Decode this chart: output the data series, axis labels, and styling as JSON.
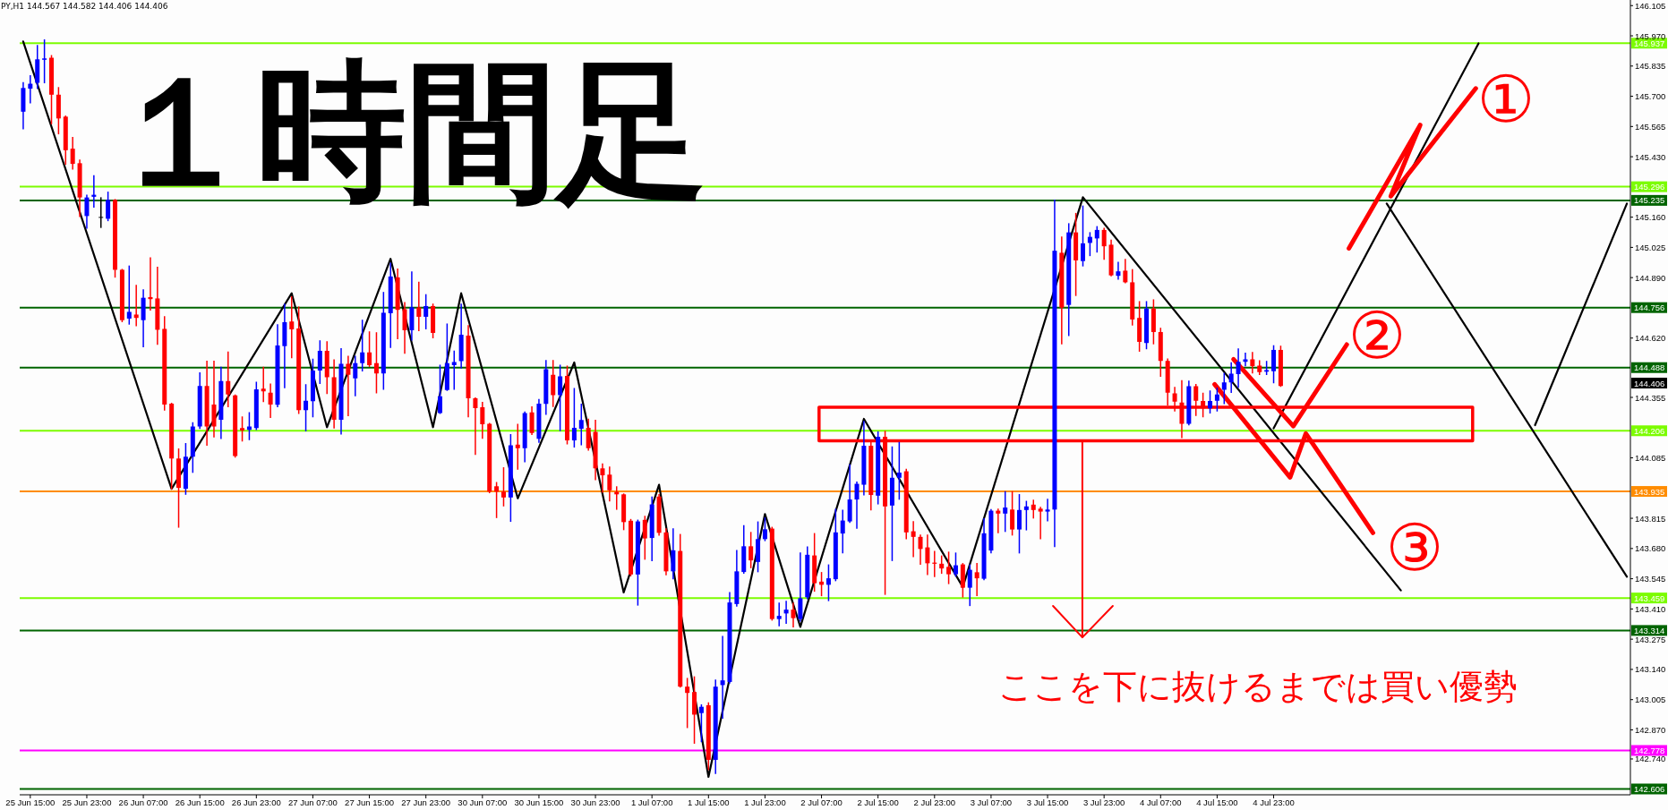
{
  "chart_data": {
    "type": "candlestick",
    "title": "１時間足",
    "subtitle": "PY,H1 144.567 144.582 144.406 144.406",
    "categories": [
      null,
      "25 Jun 15:00",
      null,
      null,
      null,
      null,
      null,
      null,
      null,
      "25 Jun 23:00",
      null,
      null,
      null,
      null,
      null,
      null,
      null,
      "26 Jun 07:00",
      null,
      null,
      null,
      null,
      null,
      null,
      null,
      "26 Jun 15:00",
      null,
      null,
      null,
      null,
      null,
      null,
      null,
      "26 Jun 23:00",
      null,
      null,
      null,
      null,
      null,
      null,
      null,
      "27 Jun 07:00",
      null,
      null,
      null,
      null,
      null,
      null,
      null,
      "27 Jun 15:00",
      null,
      null,
      null,
      null,
      null,
      null,
      null,
      "27 Jun 23:00",
      null,
      null,
      null,
      null,
      null,
      null,
      null,
      "30 Jun 07:00",
      null,
      null,
      null,
      null,
      null,
      null,
      null,
      "30 Jun 15:00",
      null,
      null,
      null,
      null,
      null,
      null,
      null,
      "30 Jun 23:00",
      null,
      null,
      null,
      null,
      null,
      null,
      null,
      "1 Jul 07:00",
      null,
      null,
      null,
      null,
      null,
      null,
      null,
      "1 Jul 15:00",
      null,
      null,
      null,
      null,
      null,
      null,
      null,
      "1 Jul 23:00",
      null,
      null,
      null,
      null,
      null,
      null,
      null,
      "2 Jul 07:00",
      null,
      null,
      null,
      null,
      null,
      null,
      null,
      "2 Jul 15:00",
      null,
      null,
      null,
      null,
      null,
      null,
      null,
      "2 Jul 23:00",
      null,
      null,
      null,
      null,
      null,
      null,
      null,
      "3 Jul 07:00",
      null,
      null,
      null,
      null,
      null,
      null,
      null,
      "3 Jul 15:00",
      null,
      null,
      null,
      null,
      null,
      null,
      null,
      "3 Jul 23:00",
      null,
      null,
      null,
      null,
      null,
      null,
      null,
      "4 Jul 07:00",
      null,
      null,
      null,
      null,
      null,
      null,
      null,
      "4 Jul 15:00",
      null,
      null,
      null,
      null,
      null,
      null,
      null,
      "4 Jul 23:00",
      null,
      null,
      null,
      null,
      null,
      null,
      null,
      null,
      null,
      null,
      null,
      null,
      null,
      null,
      null,
      null,
      null,
      null,
      null,
      null,
      null,
      null,
      null,
      null,
      null,
      null,
      null,
      null,
      null,
      null,
      null,
      null,
      null,
      null,
      null,
      null,
      null,
      null,
      null,
      null,
      null,
      null,
      null,
      null,
      null,
      null,
      null,
      null,
      null,
      null
    ],
    "ohlc": [
      [
        145.631,
        145.759,
        145.556,
        145.737
      ],
      [
        145.734,
        145.79,
        145.672,
        145.756
      ],
      [
        145.76,
        145.925,
        145.737,
        145.865
      ],
      [
        145.863,
        145.95,
        145.762,
        145.869
      ],
      [
        145.872,
        145.88,
        145.579,
        145.707
      ],
      [
        145.707,
        145.737,
        145.534,
        145.601
      ],
      [
        145.609,
        145.61,
        145.398,
        145.459
      ],
      [
        145.466,
        145.514,
        145.376,
        145.398
      ],
      [
        145.401,
        145.413,
        145.165,
        145.248
      ],
      [
        145.165,
        145.256,
        145.113,
        145.248
      ],
      [
        145.251,
        145.343,
        145.207,
        145.26
      ],
      [
        145.161,
        145.245,
        145.116,
        145.161
      ],
      [
        145.153,
        145.27,
        145.146,
        145.237
      ],
      [
        145.237,
        145.237,
        144.894,
        144.925
      ],
      [
        144.925,
        144.925,
        144.695,
        144.7
      ],
      [
        144.707,
        144.94,
        144.684,
        144.737
      ],
      [
        144.725,
        144.854,
        144.677,
        144.71
      ],
      [
        144.7,
        144.834,
        144.583,
        144.8
      ],
      [
        144.803,
        144.977,
        144.747,
        144.794
      ],
      [
        144.797,
        144.935,
        144.594,
        144.657
      ],
      [
        144.661,
        144.714,
        144.3,
        144.323
      ],
      [
        144.327,
        144.327,
        143.947,
        144.082
      ],
      [
        144.082,
        144.123,
        143.777,
        143.951
      ],
      [
        143.947,
        144.147,
        143.924,
        144.09
      ],
      [
        144.09,
        144.24,
        144.022,
        144.225
      ],
      [
        144.225,
        144.463,
        144.218,
        144.406
      ],
      [
        144.406,
        144.515,
        144.143,
        144.225
      ],
      [
        144.323,
        144.515,
        144.18,
        144.225
      ],
      [
        144.255,
        144.488,
        144.173,
        144.428
      ],
      [
        144.428,
        144.556,
        144.315,
        144.368
      ],
      [
        144.364,
        144.364,
        144.09,
        144.093
      ],
      [
        144.218,
        144.266,
        144.162,
        144.207
      ],
      [
        144.21,
        144.285,
        144.168,
        144.225
      ],
      [
        144.218,
        144.421,
        144.213,
        144.391
      ],
      [
        144.394,
        144.488,
        144.338,
        144.382
      ],
      [
        144.376,
        144.413,
        144.267,
        144.323
      ],
      [
        144.322,
        144.678,
        144.315,
        144.587
      ],
      [
        144.584,
        144.77,
        144.4,
        144.691
      ],
      [
        144.694,
        144.803,
        144.534,
        144.659
      ],
      [
        144.663,
        144.757,
        144.285,
        144.298
      ],
      [
        144.298,
        144.41,
        144.207,
        144.34
      ],
      [
        144.338,
        144.524,
        144.27,
        144.475
      ],
      [
        144.475,
        144.606,
        144.419,
        144.563
      ],
      [
        144.563,
        144.602,
        144.374,
        144.445
      ],
      [
        144.445,
        144.521,
        144.22,
        144.255
      ],
      [
        144.255,
        144.571,
        144.193,
        144.505
      ],
      [
        144.505,
        144.537,
        144.275,
        144.456
      ],
      [
        144.44,
        144.537,
        144.364,
        144.508
      ],
      [
        144.508,
        144.698,
        144.475,
        144.556
      ],
      [
        144.556,
        144.646,
        144.495,
        144.499
      ],
      [
        144.508,
        144.642,
        144.377,
        144.462
      ],
      [
        144.462,
        144.822,
        144.393,
        144.733
      ],
      [
        144.731,
        144.953,
        144.58,
        144.895
      ],
      [
        144.891,
        144.927,
        144.619,
        144.746
      ],
      [
        144.749,
        144.777,
        144.554,
        144.655
      ],
      [
        144.655,
        144.914,
        144.613,
        144.757
      ],
      [
        144.757,
        144.868,
        144.655,
        144.715
      ],
      [
        144.715,
        144.812,
        144.663,
        144.763
      ],
      [
        144.763,
        144.77,
        144.623,
        144.643
      ],
      [
        144.285,
        144.497,
        144.285,
        144.36
      ],
      [
        144.388,
        144.681,
        144.388,
        144.508
      ],
      [
        144.499,
        144.56,
        144.393,
        144.513
      ],
      [
        144.517,
        144.77,
        144.488,
        144.635
      ],
      [
        144.631,
        144.674,
        144.27,
        144.351
      ],
      [
        144.351,
        144.351,
        144.102,
        144.307
      ],
      [
        144.311,
        144.331,
        144.174,
        144.235
      ],
      [
        144.237,
        144.237,
        143.931,
        143.934
      ],
      [
        143.958,
        143.973,
        143.82,
        143.934
      ],
      [
        143.934,
        144.039,
        143.872,
        143.908
      ],
      [
        143.908,
        144.187,
        143.803,
        144.141
      ],
      [
        144.144,
        144.233,
        144.036,
        144.128
      ],
      [
        144.128,
        144.288,
        144.069,
        144.285
      ],
      [
        144.288,
        144.311,
        144.191,
        144.196
      ],
      [
        144.17,
        144.344,
        144.156,
        144.327
      ],
      [
        144.326,
        144.518,
        144.281,
        144.481
      ],
      [
        144.456,
        144.518,
        144.316,
        144.365
      ],
      [
        144.365,
        144.497,
        144.208,
        144.449
      ],
      [
        144.451,
        144.493,
        144.149,
        144.163
      ],
      [
        144.163,
        144.393,
        144.135,
        144.219
      ],
      [
        144.215,
        144.323,
        144.145,
        144.254
      ],
      [
        144.219,
        144.256,
        144.121,
        144.128
      ],
      [
        144.201,
        144.251,
        143.989,
        144.038
      ],
      [
        144.038,
        144.056,
        143.933,
        144.007
      ],
      [
        144.01,
        144.042,
        143.894,
        143.94
      ],
      [
        143.933,
        143.954,
        143.857,
        143.922
      ],
      [
        143.922,
        143.922,
        143.766,
        143.798
      ],
      [
        143.804,
        143.808,
        143.56,
        143.564
      ],
      [
        143.564,
        143.805,
        143.429,
        143.801
      ],
      [
        143.808,
        143.822,
        143.634,
        143.725
      ],
      [
        143.727,
        143.908,
        143.627,
        143.877
      ],
      [
        143.912,
        143.919,
        143.741,
        143.75
      ],
      [
        143.752,
        143.766,
        143.564,
        143.578
      ],
      [
        143.578,
        143.766,
        143.546,
        143.672
      ],
      [
        143.669,
        143.741,
        143.063,
        143.063
      ],
      [
        143.063,
        143.098,
        142.882,
        143.035
      ],
      [
        143.039,
        143.105,
        142.812,
        142.938
      ],
      [
        142.945,
        142.98,
        142.819,
        142.973
      ],
      [
        142.98,
        142.989,
        142.694,
        142.736
      ],
      [
        142.736,
        143.091,
        142.677,
        143.063
      ],
      [
        143.07,
        143.286,
        142.924,
        143.091
      ],
      [
        143.084,
        143.481,
        143.081,
        143.439
      ],
      [
        143.432,
        143.669,
        143.425,
        143.578
      ],
      [
        143.575,
        143.78,
        143.571,
        143.69
      ],
      [
        143.69,
        143.75,
        143.596,
        143.627
      ],
      [
        143.62,
        143.797,
        143.578,
        143.722
      ],
      [
        143.722,
        143.815,
        143.717,
        143.766
      ],
      [
        143.769,
        143.773,
        143.362,
        143.365
      ],
      [
        143.365,
        143.435,
        143.337,
        143.379
      ],
      [
        143.39,
        143.443,
        143.348,
        143.407
      ],
      [
        143.407,
        143.435,
        143.332,
        143.369
      ],
      [
        143.365,
        143.658,
        143.358,
        143.458
      ],
      [
        143.462,
        143.685,
        143.458,
        143.652
      ],
      [
        143.649,
        143.745,
        143.491,
        143.525
      ],
      [
        143.532,
        143.571,
        143.471,
        143.518
      ],
      [
        143.518,
        143.605,
        143.449,
        143.547
      ],
      [
        143.543,
        143.854,
        143.538,
        143.752
      ],
      [
        143.747,
        143.849,
        143.662,
        143.805
      ],
      [
        143.801,
        144.052,
        143.798,
        143.899
      ],
      [
        143.899,
        143.975,
        143.772,
        143.969
      ],
      [
        143.965,
        144.246,
        143.921,
        144.139
      ],
      [
        144.139,
        144.152,
        143.854,
        143.919
      ],
      [
        143.916,
        144.199,
        143.881,
        144.179
      ],
      [
        144.179,
        144.202,
        143.477,
        143.868
      ],
      [
        143.872,
        144.132,
        143.628,
        143.996
      ],
      [
        143.996,
        144.152,
        143.902,
        144.019
      ],
      [
        144.025,
        144.032,
        143.725,
        143.752
      ],
      [
        143.757,
        143.798,
        143.645,
        143.732
      ],
      [
        143.732,
        143.738,
        143.611,
        143.678
      ],
      [
        143.685,
        143.738,
        143.565,
        143.614
      ],
      [
        143.617,
        143.665,
        143.556,
        143.612
      ],
      [
        143.612,
        143.645,
        143.571,
        143.591
      ],
      [
        143.598,
        143.662,
        143.525,
        143.565
      ],
      [
        143.565,
        143.658,
        143.558,
        143.605
      ],
      [
        143.609,
        143.611,
        143.465,
        143.505
      ],
      [
        143.505,
        143.605,
        143.427,
        143.585
      ],
      [
        143.574,
        143.611,
        143.471,
        143.547
      ],
      [
        143.545,
        143.811,
        143.542,
        143.748
      ],
      [
        143.671,
        143.852,
        143.662,
        143.849
      ],
      [
        143.849,
        143.854,
        143.752,
        143.836
      ],
      [
        143.836,
        143.932,
        143.758,
        143.863
      ],
      [
        143.854,
        143.932,
        143.742,
        143.765
      ],
      [
        143.765,
        143.919,
        143.662,
        143.852
      ],
      [
        143.852,
        143.889,
        143.765,
        143.868
      ],
      [
        143.876,
        143.894,
        143.818,
        143.852
      ],
      [
        143.858,
        143.862,
        143.725,
        143.845
      ],
      [
        143.845,
        143.898,
        143.805,
        143.854
      ],
      [
        143.854,
        145.235,
        143.69,
        145.01
      ],
      [
        145.001,
        145.07,
        144.596,
        144.756
      ],
      [
        144.768,
        145.129,
        144.633,
        145.092
      ],
      [
        145.092,
        145.175,
        144.812,
        144.967
      ],
      [
        144.964,
        145.208,
        144.944,
        145.043
      ],
      [
        145.045,
        145.089,
        144.99,
        145.072
      ],
      [
        145.065,
        145.116,
        145.006,
        145.103
      ],
      [
        145.103,
        145.109,
        144.974,
        145.03
      ],
      [
        145.037,
        145.056,
        144.9,
        144.9
      ],
      [
        144.898,
        144.957,
        144.885,
        144.918
      ],
      [
        144.921,
        144.97,
        144.869,
        144.869
      ],
      [
        144.869,
        144.924,
        144.68,
        144.703
      ],
      [
        144.71,
        144.781,
        144.563,
        144.603
      ],
      [
        144.598,
        144.781,
        144.574,
        144.752
      ],
      [
        144.752,
        144.789,
        144.596,
        144.647
      ],
      [
        144.647,
        144.662,
        144.451,
        144.518
      ],
      [
        144.518,
        144.525,
        144.323,
        144.376
      ],
      [
        144.373,
        144.398,
        144.296,
        144.336
      ],
      [
        144.332,
        144.428,
        144.177,
        144.237
      ],
      [
        144.237,
        144.426,
        144.234,
        144.405
      ],
      [
        144.405,
        144.411,
        144.276,
        144.34
      ],
      [
        144.339,
        144.372,
        144.27,
        144.306
      ],
      [
        144.306,
        144.382,
        144.287,
        144.339
      ],
      [
        144.34,
        144.395,
        144.296,
        144.368
      ],
      [
        144.389,
        144.461,
        144.329,
        144.422
      ],
      [
        144.422,
        144.508,
        144.379,
        144.461
      ],
      [
        144.459,
        144.57,
        144.402,
        144.514
      ],
      [
        144.514,
        144.551,
        144.498,
        144.525
      ],
      [
        144.525,
        144.554,
        144.466,
        144.495
      ],
      [
        144.497,
        144.517,
        144.459,
        144.468
      ],
      [
        144.47,
        144.514,
        144.459,
        144.477
      ],
      [
        144.472,
        144.584,
        144.422,
        144.567
      ],
      [
        144.567,
        144.582,
        144.406,
        144.406
      ],
      null,
      null,
      null,
      null,
      null,
      null,
      null,
      null,
      null,
      null,
      null,
      null,
      null,
      null,
      null,
      null,
      null,
      null,
      null,
      null,
      null,
      null,
      null,
      null,
      null,
      null,
      null,
      null,
      null,
      null,
      null,
      null,
      null,
      null,
      null,
      null,
      null,
      null,
      null,
      null,
      null,
      null,
      null,
      null,
      null,
      null,
      null,
      null,
      null
    ],
    "colors": [
      "#0000ff",
      "#0000ff",
      "#0000ff",
      "#0000ff",
      "#ff0000",
      "#ff0000",
      "#ff0000",
      "#ff0000",
      "#ff0000",
      "#0000ff",
      "#0000ff",
      "#000000",
      "#0000ff",
      "#ff0000",
      "#ff0000",
      "#0000ff",
      "#ff0000",
      "#0000ff",
      "#ff0000",
      "#ff0000",
      "#ff0000",
      "#ff0000",
      "#ff0000",
      "#0000ff",
      "#0000ff",
      "#0000ff",
      "#ff0000",
      "#ff0000",
      "#0000ff",
      "#ff0000",
      "#ff0000",
      "#ff0000",
      "#0000ff",
      "#0000ff",
      "#ff0000",
      "#ff0000",
      "#0000ff",
      "#0000ff",
      "#ff0000",
      "#ff0000",
      "#0000ff",
      "#0000ff",
      "#0000ff",
      "#ff0000",
      "#ff0000",
      "#0000ff",
      "#ff0000",
      "#0000ff",
      "#0000ff",
      "#ff0000",
      "#ff0000",
      "#0000ff",
      "#0000ff",
      "#ff0000",
      "#ff0000",
      "#0000ff",
      "#ff0000",
      "#0000ff",
      "#ff0000",
      "#0000ff",
      "#0000ff",
      "#0000ff",
      "#0000ff",
      "#ff0000",
      "#ff0000",
      "#ff0000",
      "#ff0000",
      "#ff0000",
      "#ff0000",
      "#0000ff",
      "#ff0000",
      "#0000ff",
      "#ff0000",
      "#0000ff",
      "#0000ff",
      "#ff0000",
      "#0000ff",
      "#ff0000",
      "#0000ff",
      "#0000ff",
      "#ff0000",
      "#ff0000",
      "#ff0000",
      "#ff0000",
      "#ff0000",
      "#ff0000",
      "#ff0000",
      "#0000ff",
      "#ff0000",
      "#0000ff",
      "#ff0000",
      "#ff0000",
      "#0000ff",
      "#ff0000",
      "#ff0000",
      "#ff0000",
      "#0000ff",
      "#ff0000",
      "#0000ff",
      "#0000ff",
      "#0000ff",
      "#0000ff",
      "#0000ff",
      "#ff0000",
      "#0000ff",
      "#0000ff",
      "#ff0000",
      "#0000ff",
      "#0000ff",
      "#ff0000",
      "#0000ff",
      "#0000ff",
      "#ff0000",
      "#ff0000",
      "#0000ff",
      "#0000ff",
      "#0000ff",
      "#0000ff",
      "#0000ff",
      "#0000ff",
      "#ff0000",
      "#0000ff",
      "#ff0000",
      "#0000ff",
      "#0000ff",
      "#ff0000",
      "#ff0000",
      "#ff0000",
      "#ff0000",
      "#ff0000",
      "#ff0000",
      "#ff0000",
      "#0000ff",
      "#ff0000",
      "#0000ff",
      "#ff0000",
      "#0000ff",
      "#0000ff",
      "#ff0000",
      "#0000ff",
      "#ff0000",
      "#0000ff",
      "#0000ff",
      "#ff0000",
      "#ff0000",
      "#0000ff",
      "#0000ff",
      "#ff0000",
      "#0000ff",
      "#ff0000",
      "#0000ff",
      "#0000ff",
      "#0000ff",
      "#ff0000",
      "#ff0000",
      "#0000ff",
      "#ff0000",
      "#ff0000",
      "#ff0000",
      "#0000ff",
      "#ff0000",
      "#ff0000",
      "#ff0000",
      "#ff0000",
      "#ff0000",
      "#0000ff",
      "#ff0000",
      "#ff0000",
      "#0000ff",
      "#0000ff",
      "#0000ff",
      "#0000ff",
      "#0000ff",
      "#0000ff",
      "#ff0000",
      "#ff0000",
      "#0000ff",
      "#0000ff",
      "#ff0000",
      null,
      null,
      null,
      null,
      null,
      null,
      null,
      null,
      null,
      null,
      null,
      null,
      null,
      null,
      null,
      null,
      null,
      null,
      null,
      null,
      null,
      null,
      null,
      null,
      null,
      null,
      null,
      null,
      null,
      null,
      null,
      null,
      null,
      null,
      null,
      null,
      null,
      null,
      null,
      null,
      null,
      null,
      null,
      null,
      null,
      null,
      null,
      null,
      null
    ],
    "series": [
      {
        "type": "line",
        "color": "#000000",
        "values": [
          145.945,
          null,
          null,
          null,
          null,
          null,
          null,
          null,
          null,
          null,
          null,
          null,
          null,
          null,
          null,
          null,
          null,
          null,
          null,
          null,
          null,
          143.947,
          null,
          null,
          null,
          null,
          null,
          null,
          null,
          null,
          null,
          null,
          null,
          null,
          null,
          null,
          null,
          null,
          144.82,
          null,
          null,
          null,
          null,
          144.222,
          null,
          null,
          null,
          null,
          null,
          null,
          null,
          null,
          144.974,
          null,
          null,
          null,
          null,
          null,
          144.222,
          null,
          null,
          null,
          144.82,
          null,
          null,
          null,
          null,
          null,
          null,
          null,
          143.904,
          null,
          null,
          null,
          null,
          null,
          null,
          null,
          144.511,
          null,
          null,
          null,
          null,
          null,
          null,
          143.484,
          null,
          null,
          null,
          null,
          143.965,
          null,
          null,
          null,
          null,
          null,
          null,
          142.66,
          null,
          null,
          null,
          null,
          null,
          null,
          null,
          143.834,
          null,
          null,
          null,
          null,
          143.33,
          null,
          null,
          null,
          null,
          null,
          null,
          null,
          null,
          144.259,
          null,
          null,
          null,
          null,
          null,
          null,
          null,
          null,
          null,
          null,
          null,
          null,
          null,
          143.508,
          null,
          null,
          null,
          null,
          null,
          null,
          null,
          null,
          null,
          null,
          null,
          null,
          null,
          null,
          null,
          null,
          145.249,
          null,
          null,
          null,
          null,
          null,
          null,
          null,
          null,
          null,
          null,
          null,
          null,
          null,
          null,
          null,
          null,
          null,
          null,
          null,
          null,
          null,
          null,
          null,
          null,
          null,
          null,
          null,
          null,
          null,
          null,
          null,
          null,
          null,
          null,
          null,
          null,
          null,
          null,
          null,
          null,
          null,
          null,
          null,
          null,
          143.493,
          null,
          null,
          null,
          null,
          null,
          null,
          null,
          null,
          null,
          null,
          null,
          null,
          null,
          null,
          null,
          null,
          null,
          null,
          null,
          null,
          null,
          null,
          null,
          null,
          null,
          null,
          null,
          null,
          null,
          null,
          null,
          null
        ]
      },
      {
        "type": "line",
        "color": "#000000",
        "values": [
          null,
          null,
          null,
          null,
          null,
          null,
          null,
          null,
          null,
          null,
          null,
          null,
          null,
          null,
          null,
          null,
          null,
          null,
          null,
          null,
          null,
          null,
          null,
          null,
          null,
          null,
          null,
          null,
          null,
          null,
          null,
          null,
          null,
          null,
          null,
          null,
          null,
          null,
          null,
          null,
          null,
          null,
          null,
          null,
          null,
          null,
          null,
          null,
          null,
          null,
          null,
          null,
          null,
          null,
          null,
          null,
          null,
          null,
          null,
          null,
          null,
          null,
          null,
          null,
          null,
          null,
          null,
          null,
          null,
          null,
          null,
          null,
          null,
          null,
          null,
          null,
          null,
          null,
          null,
          null,
          null,
          null,
          null,
          null,
          null,
          null,
          null,
          null,
          null,
          null,
          null,
          null,
          null,
          null,
          null,
          null,
          null,
          null,
          null,
          null,
          null,
          null,
          null,
          null,
          null,
          null,
          null,
          null,
          null,
          null,
          null,
          null,
          null,
          null,
          null,
          null,
          null,
          null,
          null,
          null,
          null,
          null,
          null,
          null,
          null,
          null,
          null,
          null,
          null,
          null,
          null,
          null,
          null,
          null,
          null,
          null,
          null,
          null,
          null,
          null,
          null,
          null,
          null,
          null,
          null,
          null,
          null,
          null,
          null,
          null,
          null,
          null,
          null,
          null,
          null,
          null,
          null,
          null,
          null,
          null,
          null,
          null,
          null,
          null,
          null,
          null,
          null,
          null,
          null,
          null,
          null,
          null,
          null,
          null,
          null,
          null,
          null,
          144.217,
          null,
          null,
          null,
          null,
          null,
          null,
          null,
          null,
          null,
          null,
          null,
          null,
          null,
          null,
          null,
          null,
          null,
          null,
          null,
          null,
          null,
          null,
          null,
          null,
          null,
          null,
          null,
          null,
          145.936,
          null,
          null,
          null,
          null,
          null,
          null,
          null,
          null,
          null,
          null,
          null,
          null,
          null,
          null,
          null,
          null,
          null,
          null,
          null,
          null,
          null
        ]
      },
      {
        "type": "line",
        "color": "#000000",
        "values": [
          null,
          null,
          null,
          null,
          null,
          null,
          null,
          null,
          null,
          null,
          null,
          null,
          null,
          null,
          null,
          null,
          null,
          null,
          null,
          null,
          null,
          null,
          null,
          null,
          null,
          null,
          null,
          null,
          null,
          null,
          null,
          null,
          null,
          null,
          null,
          null,
          null,
          null,
          null,
          null,
          null,
          null,
          null,
          null,
          null,
          null,
          null,
          null,
          null,
          null,
          null,
          null,
          null,
          null,
          null,
          null,
          null,
          null,
          null,
          null,
          null,
          null,
          null,
          null,
          null,
          null,
          null,
          null,
          null,
          null,
          null,
          null,
          null,
          null,
          null,
          null,
          null,
          null,
          null,
          null,
          null,
          null,
          null,
          null,
          null,
          null,
          null,
          null,
          null,
          null,
          null,
          null,
          null,
          null,
          null,
          null,
          null,
          null,
          null,
          null,
          null,
          null,
          null,
          null,
          null,
          null,
          null,
          null,
          null,
          null,
          null,
          null,
          null,
          null,
          null,
          null,
          null,
          null,
          null,
          null,
          null,
          null,
          null,
          null,
          null,
          null,
          null,
          null,
          null,
          null,
          null,
          null,
          null,
          null,
          null,
          null,
          null,
          null,
          null,
          null,
          null,
          null,
          null,
          null,
          null,
          null,
          null,
          null,
          null,
          null,
          null,
          null,
          null,
          null,
          null,
          null,
          null,
          null,
          null,
          null,
          null,
          null,
          null,
          null,
          null,
          null,
          null,
          null,
          null,
          null,
          null,
          null,
          null,
          null,
          null,
          null,
          null,
          null,
          null,
          null,
          null,
          null,
          null,
          null,
          null,
          null,
          null,
          null,
          null,
          null,
          null,
          null,
          null,
          145.221,
          null,
          null,
          null,
          null,
          null,
          null,
          null,
          null,
          null,
          null,
          null,
          null,
          null,
          null,
          null,
          null,
          null,
          null,
          null,
          null,
          null,
          null,
          null,
          null,
          null,
          null,
          null,
          null,
          null,
          null,
          null,
          null,
          null,
          143.554
        ]
      },
      {
        "type": "line",
        "color": "#000000",
        "values": [
          null,
          null,
          null,
          null,
          null,
          null,
          null,
          null,
          null,
          null,
          null,
          null,
          null,
          null,
          null,
          null,
          null,
          null,
          null,
          null,
          null,
          null,
          null,
          null,
          null,
          null,
          null,
          null,
          null,
          null,
          null,
          null,
          null,
          null,
          null,
          null,
          null,
          null,
          null,
          null,
          null,
          null,
          null,
          null,
          null,
          null,
          null,
          null,
          null,
          null,
          null,
          null,
          null,
          null,
          null,
          null,
          null,
          null,
          null,
          null,
          null,
          null,
          null,
          null,
          null,
          null,
          null,
          null,
          null,
          null,
          null,
          null,
          null,
          null,
          null,
          null,
          null,
          null,
          null,
          null,
          null,
          null,
          null,
          null,
          null,
          null,
          null,
          null,
          null,
          null,
          null,
          null,
          null,
          null,
          null,
          null,
          null,
          null,
          null,
          null,
          null,
          null,
          null,
          null,
          null,
          null,
          null,
          null,
          null,
          null,
          null,
          null,
          null,
          null,
          null,
          null,
          null,
          null,
          null,
          null,
          null,
          null,
          null,
          null,
          null,
          null,
          null,
          null,
          null,
          null,
          null,
          null,
          null,
          null,
          null,
          null,
          null,
          null,
          null,
          null,
          null,
          null,
          null,
          null,
          null,
          null,
          null,
          null,
          null,
          null,
          null,
          null,
          null,
          null,
          null,
          null,
          null,
          null,
          null,
          null,
          null,
          null,
          null,
          null,
          null,
          null,
          null,
          null,
          null,
          null,
          null,
          null,
          null,
          null,
          null,
          null,
          null,
          null,
          null,
          null,
          null,
          null,
          null,
          null,
          null,
          null,
          null,
          null,
          null,
          null,
          null,
          null,
          null,
          null,
          null,
          null,
          null,
          null,
          null,
          null,
          null,
          null,
          null,
          null,
          null,
          null,
          null,
          null,
          null,
          null,
          null,
          null,
          null,
          null,
          144.231,
          null,
          null,
          null,
          null,
          null,
          null,
          null,
          null,
          null,
          null,
          null,
          null,
          145.221
        ]
      }
    ],
    "ylim": [
      142.58,
      146.13
    ],
    "yticks": [
      146.105,
      {
        "value": 145.97,
        "label": "145.970"
      },
      145.835,
      {
        "value": 145.7,
        "label": "145.700"
      },
      145.565,
      {
        "value": 145.43,
        "label": "145.430"
      },
      {
        "value": 145.16,
        "label": "145.160"
      },
      145.025,
      {
        "value": 144.89,
        "label": "144.890"
      },
      {
        "value": 144.62,
        "label": "144.620"
      },
      144.355,
      144.085,
      143.815,
      {
        "value": 143.68,
        "label": "143.680"
      },
      143.545,
      {
        "value": 143.41,
        "label": "143.410"
      },
      143.275,
      {
        "value": 143.14,
        "label": "143.140"
      },
      143.005,
      {
        "value": 142.87,
        "label": "142.870"
      },
      {
        "value": 142.74,
        "label": "142.740"
      }
    ],
    "ref_lines": [
      {
        "axis": "y",
        "value": 145.937,
        "label": "145.937",
        "color": "#7cfc00"
      },
      {
        "axis": "y",
        "value": 145.296,
        "label": "145.296",
        "color": "#7cfc00"
      },
      {
        "axis": "y",
        "value": 145.235,
        "label": "145.235",
        "color": "#006400"
      },
      {
        "axis": "y",
        "value": 144.756,
        "label": "144.756",
        "color": "#006400"
      },
      {
        "axis": "y",
        "value": 144.488,
        "label": "144.488",
        "color": "#006400"
      },
      {
        "axis": "y",
        "value": 144.206,
        "label": "144.206",
        "color": "#7cfc00"
      },
      {
        "axis": "y",
        "value": 143.935,
        "label": "143.935",
        "color": "#ff8c00"
      },
      {
        "axis": "y",
        "value": 143.459,
        "label": "143.459",
        "color": "#7cfc00"
      },
      {
        "axis": "y",
        "value": 143.314,
        "label": "143.314",
        "color": "#006400"
      },
      {
        "axis": "y",
        "value": 142.778,
        "label": "142.778",
        "color": "#ff00ff"
      },
      {
        "axis": "y",
        "value": 142.606,
        "label": "142.606",
        "color": "#006400"
      }
    ],
    "annotations": [
      "ここを下に抜けるまでは買い優勢",
      "①",
      "②",
      "③",
      "144.406"
    ]
  }
}
